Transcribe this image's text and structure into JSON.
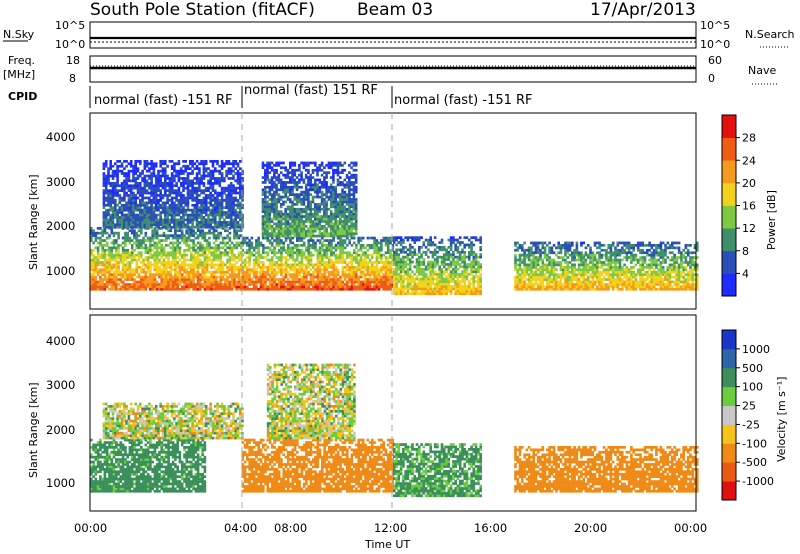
{
  "header": {
    "station": "South Pole Station (fitACF)",
    "beam": "Beam 03",
    "date": "17/Apr/2013"
  },
  "top_panels": {
    "nsky_label": "N.Sky",
    "nsky_ticks": [
      "10^5",
      "10^0"
    ],
    "nsearch_label": "N.Search",
    "nsearch_ticks": [
      "10^5",
      "10^0"
    ],
    "freq_label_1": "Freq.",
    "freq_label_2": "[MHz]",
    "freq_ticks": [
      "18",
      "8"
    ],
    "nave_label": "Nave",
    "nave_ticks": [
      "60",
      "0"
    ],
    "cpid_label": "CPID",
    "cpid_segments": [
      {
        "label": "normal (fast) -151 RF",
        "start_hour": 0,
        "end_hour": 6
      },
      {
        "label": "normal (fast) 151 RF",
        "start_hour": 6,
        "end_hour": 12
      },
      {
        "label": "normal (fast) -151 RF",
        "start_hour": 12,
        "end_hour": 24
      }
    ]
  },
  "colorbars": {
    "power": {
      "label": "Power [dB]",
      "ticks": [
        "4",
        "8",
        "12",
        "16",
        "20",
        "24",
        "28"
      ],
      "colors": [
        "#1f2cff",
        "#2b4fb8",
        "#3f8f6a",
        "#7fc843",
        "#f2d21a",
        "#f59a1d",
        "#ef5d14",
        "#e3110e"
      ]
    },
    "velocity": {
      "label": "Velocity [m s⁻¹]",
      "ticks": [
        "1000",
        "500",
        "100",
        "25",
        "-25",
        "-100",
        "-500",
        "-1000"
      ],
      "colors": [
        "#1a36c8",
        "#2f64a8",
        "#3a8f5b",
        "#6acd3f",
        "#c8c8c8",
        "#f7c21a",
        "#f08a16",
        "#ea5a13",
        "#e01010"
      ]
    }
  },
  "chart_data": [
    {
      "type": "heatmap",
      "title": "",
      "xlabel": "Time UT",
      "ylabel": "Slant Range [km]",
      "x_ticks": [
        "00:00",
        "04:00",
        "08:00",
        "12:00",
        "16:00",
        "20:00",
        "00:00"
      ],
      "y_ticks": [
        "1000",
        "2000",
        "3000",
        "4000"
      ],
      "xlim": [
        0,
        24
      ],
      "ylim": [
        180,
        4600
      ],
      "colorbar": "Power [dB]",
      "value_range": [
        0,
        30
      ],
      "regions": [
        {
          "t0": 0.0,
          "t1": 6.0,
          "r0": 600,
          "r1": 2000,
          "peak": 26
        },
        {
          "t0": 0.5,
          "t1": 6.0,
          "r0": 2000,
          "r1": 3500,
          "peak": 8
        },
        {
          "t0": 6.0,
          "t1": 12.0,
          "r0": 600,
          "r1": 1800,
          "peak": 27
        },
        {
          "t0": 6.8,
          "t1": 10.5,
          "r0": 1800,
          "r1": 3500,
          "peak": 12
        },
        {
          "t0": 12.0,
          "t1": 15.5,
          "r0": 500,
          "r1": 1800,
          "peak": 20
        },
        {
          "t0": 16.8,
          "t1": 24.0,
          "r0": 600,
          "r1": 1700,
          "peak": 21
        }
      ]
    },
    {
      "type": "heatmap",
      "title": "",
      "xlabel": "Time UT",
      "ylabel": "Slant Range [km]",
      "x_ticks": [
        "00:00",
        "04:00",
        "08:00",
        "12:00",
        "16:00",
        "20:00",
        "00:00"
      ],
      "y_ticks": [
        "1000",
        "2000",
        "3000",
        "4000"
      ],
      "xlim": [
        0,
        24
      ],
      "ylim": [
        180,
        4600
      ],
      "colorbar": "Velocity [m s⁻¹]",
      "value_range": [
        -1000,
        1000
      ],
      "regions": [
        {
          "t0": 0.0,
          "t1": 4.5,
          "r0": 600,
          "r1": 1800,
          "velocity": 200
        },
        {
          "t0": 0.5,
          "t1": 6.0,
          "r0": 1800,
          "r1": 2600,
          "velocity": 0
        },
        {
          "t0": 6.0,
          "t1": 12.0,
          "r0": 600,
          "r1": 1800,
          "velocity": -300
        },
        {
          "t0": 7.0,
          "t1": 10.5,
          "r0": 1800,
          "r1": 3500,
          "velocity": 0
        },
        {
          "t0": 12.0,
          "t1": 15.5,
          "r0": 500,
          "r1": 1700,
          "velocity": 150
        },
        {
          "t0": 16.8,
          "t1": 24.0,
          "r0": 600,
          "r1": 1600,
          "velocity": -250
        }
      ]
    }
  ]
}
